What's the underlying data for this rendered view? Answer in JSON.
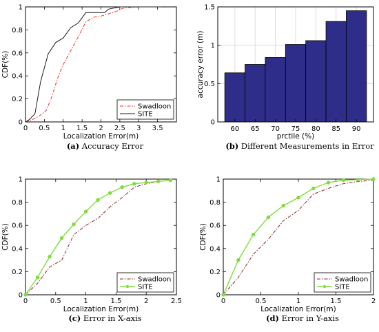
{
  "chart_data": [
    {
      "type": "line",
      "caption_tag": "(a)",
      "caption_text": " Accuracy Error",
      "xlabel": "Localization Error(m)",
      "ylabel": "CDF(%)",
      "xlim": [
        0,
        4
      ],
      "ylim": [
        0,
        1
      ],
      "xticks": [
        0,
        0.5,
        1,
        1.5,
        2,
        2.5,
        3,
        3.5
      ],
      "xtick_labels": [
        "0",
        "0.5",
        "1",
        "1.5",
        "2",
        "2.5",
        "3",
        "3.5"
      ],
      "yticks": [
        0,
        0.2,
        0.4,
        0.6,
        0.8,
        1
      ],
      "ytick_labels": [
        "0",
        "0.2",
        "0.4",
        "0.6",
        "0.8",
        "1"
      ],
      "grid": false,
      "legend": "bottom-right",
      "series": [
        {
          "name": "Swadloon",
          "color": "#e8322b",
          "dash": "dashdot",
          "markers": false,
          "x": [
            0,
            0.1,
            0.25,
            0.4,
            0.55,
            0.7,
            0.85,
            1.0,
            1.2,
            1.4,
            1.6,
            1.8,
            2.0,
            2.2,
            2.4,
            2.6,
            2.8,
            3.0,
            3.6
          ],
          "y": [
            0,
            0.01,
            0.03,
            0.06,
            0.1,
            0.22,
            0.38,
            0.5,
            0.62,
            0.74,
            0.87,
            0.91,
            0.92,
            0.94,
            0.96,
            0.99,
            0.995,
            1.0,
            1.0
          ]
        },
        {
          "name": "SITE",
          "color": "#1a1a1a",
          "dash": "solid",
          "markers": false,
          "x": [
            0,
            0.1,
            0.25,
            0.4,
            0.6,
            0.8,
            1.0,
            1.2,
            1.4,
            1.6,
            2.1,
            2.2,
            2.5,
            3.0,
            3.6
          ],
          "y": [
            0,
            0.02,
            0.07,
            0.35,
            0.59,
            0.69,
            0.73,
            0.82,
            0.86,
            0.95,
            0.95,
            0.98,
            1.0,
            1.0,
            1.0
          ]
        }
      ]
    },
    {
      "type": "bar",
      "caption_tag": "(b)",
      "caption_text": " Different Measurements in Error",
      "xlabel": "prctile (%)",
      "ylabel": "accuracy error (m)",
      "categories": [
        "60",
        "65",
        "70",
        "75",
        "80",
        "85",
        "90"
      ],
      "values": [
        0.64,
        0.75,
        0.84,
        1.01,
        1.06,
        1.31,
        1.45
      ],
      "ylim": [
        0,
        1.5
      ],
      "yticks": [
        0,
        0.5,
        1,
        1.5
      ],
      "ytick_labels": [
        "0",
        "0.5",
        "1",
        "1.5"
      ],
      "grid": true,
      "bar_color": "#2e2e8a"
    },
    {
      "type": "line",
      "caption_tag": "(c)",
      "caption_text": " Error in X-axis",
      "xlabel": "Localization Error(m)",
      "ylabel": "CDF(%)",
      "xlim": [
        0,
        2.5
      ],
      "ylim": [
        0,
        1
      ],
      "xticks": [
        0,
        0.5,
        1,
        1.5,
        2,
        2.5
      ],
      "xtick_labels": [
        "0",
        "0.5",
        "1",
        "1.5",
        "2",
        "2.5"
      ],
      "yticks": [
        0,
        0.2,
        0.4,
        0.6,
        0.8,
        1
      ],
      "ytick_labels": [
        "0",
        "0.2",
        "0.4",
        "0.6",
        "0.8",
        "1"
      ],
      "grid": false,
      "legend": "bottom-right",
      "series": [
        {
          "name": "Swadloon",
          "color": "#8b2020",
          "dash": "dashdot",
          "markers": false,
          "x": [
            0,
            0.2,
            0.4,
            0.6,
            0.8,
            1.0,
            1.2,
            1.4,
            1.6,
            1.8,
            2.0,
            2.2,
            2.4
          ],
          "y": [
            0,
            0.1,
            0.24,
            0.3,
            0.52,
            0.6,
            0.66,
            0.76,
            0.84,
            0.93,
            0.96,
            0.98,
            0.99
          ]
        },
        {
          "name": "SITE",
          "color": "#7fdc3c",
          "dash": "solid",
          "markers": true,
          "x": [
            0,
            0.2,
            0.4,
            0.6,
            0.8,
            1.0,
            1.2,
            1.4,
            1.6,
            1.8,
            2.0,
            2.2,
            2.4
          ],
          "y": [
            0,
            0.15,
            0.33,
            0.49,
            0.61,
            0.72,
            0.82,
            0.88,
            0.93,
            0.96,
            0.97,
            0.98,
            0.99
          ]
        }
      ]
    },
    {
      "type": "line",
      "caption_tag": "(d)",
      "caption_text": " Error in Y-axis",
      "xlabel": "Localization Error(m)",
      "ylabel": "CDF(%)",
      "xlim": [
        0,
        2
      ],
      "ylim": [
        0,
        1
      ],
      "xticks": [
        0,
        0.5,
        1,
        1.5,
        2
      ],
      "xtick_labels": [
        "0",
        "0.5",
        "1",
        "1.5",
        "2"
      ],
      "yticks": [
        0,
        0.2,
        0.4,
        0.6,
        0.8,
        1
      ],
      "ytick_labels": [
        "0",
        "0.2",
        "0.4",
        "0.6",
        "0.8",
        "1"
      ],
      "grid": false,
      "legend": "bottom-right",
      "series": [
        {
          "name": "Swadloon",
          "color": "#8b2020",
          "dash": "dashdot",
          "markers": false,
          "x": [
            0,
            0.2,
            0.4,
            0.6,
            0.8,
            1.0,
            1.2,
            1.4,
            1.6,
            1.8,
            2.0
          ],
          "y": [
            0,
            0.15,
            0.35,
            0.48,
            0.64,
            0.73,
            0.87,
            0.92,
            0.96,
            0.98,
            0.99
          ]
        },
        {
          "name": "SITE",
          "color": "#7fdc3c",
          "dash": "solid",
          "markers": true,
          "x": [
            0,
            0.2,
            0.4,
            0.6,
            0.8,
            1.0,
            1.2,
            1.4,
            1.6,
            1.8,
            2.0
          ],
          "y": [
            0,
            0.3,
            0.52,
            0.67,
            0.77,
            0.84,
            0.92,
            0.97,
            0.99,
            0.995,
            1.0
          ]
        }
      ]
    }
  ]
}
